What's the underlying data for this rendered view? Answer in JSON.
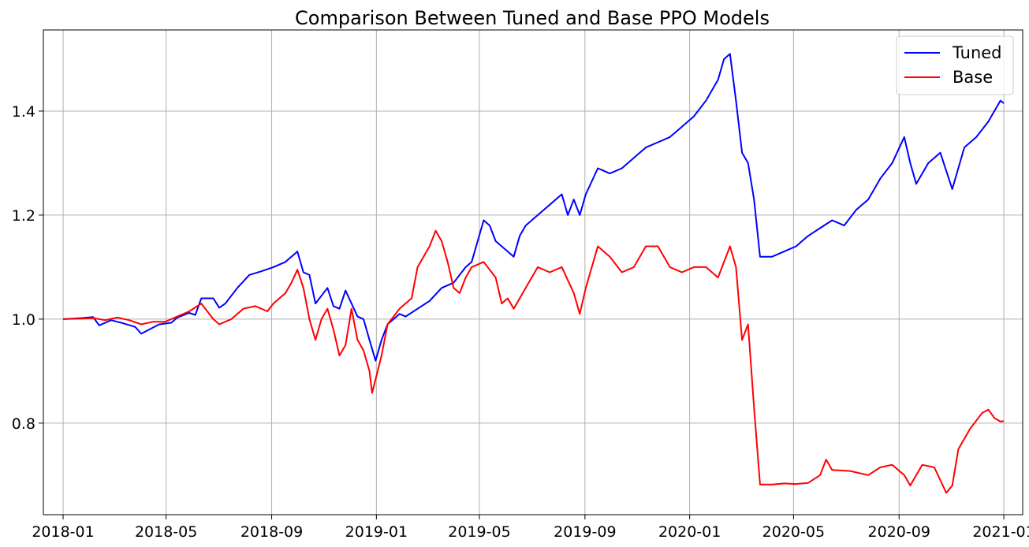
{
  "chart_data": {
    "type": "line",
    "title": "Comparison Between Tuned and Base PPO Models",
    "xlabel": "",
    "ylabel": "",
    "xlim": [
      "2017-12-09",
      "2021-01-23"
    ],
    "ylim": [
      0.624,
      1.556
    ],
    "grid": true,
    "legend_position": "top-right",
    "x_ticks": [
      "2018-01",
      "2018-05",
      "2018-09",
      "2019-01",
      "2019-05",
      "2019-09",
      "2020-01",
      "2020-05",
      "2020-09",
      "2021-01"
    ],
    "y_ticks": [
      "0.8",
      "1.0",
      "1.2",
      "1.4"
    ],
    "series": [
      {
        "name": "Tuned",
        "color": "#0000ff",
        "points": [
          [
            "2018-01-01",
            1.0
          ],
          [
            "2018-01-22",
            1.002
          ],
          [
            "2018-02-05",
            1.004
          ],
          [
            "2018-02-12",
            0.988
          ],
          [
            "2018-02-26",
            0.998
          ],
          [
            "2018-03-12",
            0.992
          ],
          [
            "2018-03-26",
            0.985
          ],
          [
            "2018-04-02",
            0.972
          ],
          [
            "2018-04-09",
            0.978
          ],
          [
            "2018-04-23",
            0.99
          ],
          [
            "2018-05-07",
            0.993
          ],
          [
            "2018-05-14",
            1.003
          ],
          [
            "2018-05-28",
            1.012
          ],
          [
            "2018-06-04",
            1.008
          ],
          [
            "2018-06-11",
            1.04
          ],
          [
            "2018-06-25",
            1.04
          ],
          [
            "2018-07-02",
            1.022
          ],
          [
            "2018-07-09",
            1.03
          ],
          [
            "2018-07-23",
            1.06
          ],
          [
            "2018-08-06",
            1.085
          ],
          [
            "2018-08-20",
            1.092
          ],
          [
            "2018-09-03",
            1.1
          ],
          [
            "2018-09-17",
            1.11
          ],
          [
            "2018-10-01",
            1.13
          ],
          [
            "2018-10-08",
            1.09
          ],
          [
            "2018-10-15",
            1.085
          ],
          [
            "2018-10-22",
            1.03
          ],
          [
            "2018-10-29",
            1.045
          ],
          [
            "2018-11-05",
            1.06
          ],
          [
            "2018-11-12",
            1.025
          ],
          [
            "2018-11-19",
            1.02
          ],
          [
            "2018-11-26",
            1.055
          ],
          [
            "2018-12-03",
            1.03
          ],
          [
            "2018-12-10",
            1.005
          ],
          [
            "2018-12-17",
            1.0
          ],
          [
            "2018-12-24",
            0.96
          ],
          [
            "2018-12-31",
            0.92
          ],
          [
            "2019-01-07",
            0.96
          ],
          [
            "2019-01-14",
            0.99
          ],
          [
            "2019-01-21",
            1.0
          ],
          [
            "2019-01-28",
            1.01
          ],
          [
            "2019-02-04",
            1.005
          ],
          [
            "2019-02-18",
            1.02
          ],
          [
            "2019-03-04",
            1.035
          ],
          [
            "2019-03-18",
            1.06
          ],
          [
            "2019-04-01",
            1.07
          ],
          [
            "2019-04-15",
            1.1
          ],
          [
            "2019-04-22",
            1.11
          ],
          [
            "2019-04-29",
            1.15
          ],
          [
            "2019-05-06",
            1.19
          ],
          [
            "2019-05-13",
            1.18
          ],
          [
            "2019-05-20",
            1.15
          ],
          [
            "2019-06-03",
            1.13
          ],
          [
            "2019-06-10",
            1.12
          ],
          [
            "2019-06-17",
            1.16
          ],
          [
            "2019-06-24",
            1.18
          ],
          [
            "2019-07-08",
            1.2
          ],
          [
            "2019-07-22",
            1.22
          ],
          [
            "2019-08-05",
            1.24
          ],
          [
            "2019-08-12",
            1.2
          ],
          [
            "2019-08-19",
            1.23
          ],
          [
            "2019-08-26",
            1.2
          ],
          [
            "2019-09-02",
            1.24
          ],
          [
            "2019-09-16",
            1.29
          ],
          [
            "2019-09-30",
            1.28
          ],
          [
            "2019-10-14",
            1.29
          ],
          [
            "2019-10-28",
            1.31
          ],
          [
            "2019-11-11",
            1.33
          ],
          [
            "2019-11-25",
            1.34
          ],
          [
            "2019-12-09",
            1.35
          ],
          [
            "2019-12-23",
            1.37
          ],
          [
            "2020-01-06",
            1.39
          ],
          [
            "2020-01-20",
            1.42
          ],
          [
            "2020-02-03",
            1.46
          ],
          [
            "2020-02-10",
            1.5
          ],
          [
            "2020-02-17",
            1.51
          ],
          [
            "2020-02-24",
            1.42
          ],
          [
            "2020-03-02",
            1.32
          ],
          [
            "2020-03-09",
            1.3
          ],
          [
            "2020-03-16",
            1.23
          ],
          [
            "2020-03-23",
            1.12
          ],
          [
            "2020-04-06",
            1.12
          ],
          [
            "2020-04-20",
            1.13
          ],
          [
            "2020-05-04",
            1.14
          ],
          [
            "2020-05-18",
            1.16
          ],
          [
            "2020-06-01",
            1.175
          ],
          [
            "2020-06-15",
            1.19
          ],
          [
            "2020-06-29",
            1.18
          ],
          [
            "2020-07-13",
            1.21
          ],
          [
            "2020-07-27",
            1.23
          ],
          [
            "2020-08-10",
            1.27
          ],
          [
            "2020-08-24",
            1.3
          ],
          [
            "2020-09-07",
            1.35
          ],
          [
            "2020-09-14",
            1.3
          ],
          [
            "2020-09-21",
            1.26
          ],
          [
            "2020-10-05",
            1.3
          ],
          [
            "2020-10-19",
            1.32
          ],
          [
            "2020-11-02",
            1.25
          ],
          [
            "2020-11-16",
            1.33
          ],
          [
            "2020-11-30",
            1.35
          ],
          [
            "2020-12-14",
            1.38
          ],
          [
            "2020-12-28",
            1.42
          ],
          [
            "2021-01-01",
            1.415
          ]
        ]
      },
      {
        "name": "Base",
        "color": "#ff0000",
        "points": [
          [
            "2018-01-01",
            1.0
          ],
          [
            "2018-01-22",
            1.001
          ],
          [
            "2018-02-05",
            1.002
          ],
          [
            "2018-02-19",
            0.998
          ],
          [
            "2018-03-05",
            1.003
          ],
          [
            "2018-03-19",
            0.998
          ],
          [
            "2018-04-02",
            0.99
          ],
          [
            "2018-04-16",
            0.995
          ],
          [
            "2018-04-30",
            0.995
          ],
          [
            "2018-05-14",
            1.005
          ],
          [
            "2018-05-28",
            1.015
          ],
          [
            "2018-06-11",
            1.03
          ],
          [
            "2018-06-25",
            1.0
          ],
          [
            "2018-07-02",
            0.99
          ],
          [
            "2018-07-16",
            1.0
          ],
          [
            "2018-07-30",
            1.02
          ],
          [
            "2018-08-13",
            1.025
          ],
          [
            "2018-08-27",
            1.015
          ],
          [
            "2018-09-03",
            1.03
          ],
          [
            "2018-09-17",
            1.05
          ],
          [
            "2018-09-24",
            1.07
          ],
          [
            "2018-10-01",
            1.095
          ],
          [
            "2018-10-08",
            1.06
          ],
          [
            "2018-10-15",
            1.0
          ],
          [
            "2018-10-22",
            0.96
          ],
          [
            "2018-10-29",
            1.0
          ],
          [
            "2018-11-05",
            1.02
          ],
          [
            "2018-11-12",
            0.98
          ],
          [
            "2018-11-19",
            0.93
          ],
          [
            "2018-11-26",
            0.95
          ],
          [
            "2018-12-03",
            1.02
          ],
          [
            "2018-12-10",
            0.96
          ],
          [
            "2018-12-17",
            0.94
          ],
          [
            "2018-12-24",
            0.9
          ],
          [
            "2018-12-27",
            0.858
          ],
          [
            "2019-01-07",
            0.93
          ],
          [
            "2019-01-14",
            0.99
          ],
          [
            "2019-01-28",
            1.02
          ],
          [
            "2019-02-11",
            1.04
          ],
          [
            "2019-02-18",
            1.1
          ],
          [
            "2019-03-04",
            1.14
          ],
          [
            "2019-03-11",
            1.17
          ],
          [
            "2019-03-18",
            1.15
          ],
          [
            "2019-03-25",
            1.11
          ],
          [
            "2019-04-01",
            1.06
          ],
          [
            "2019-04-08",
            1.05
          ],
          [
            "2019-04-15",
            1.08
          ],
          [
            "2019-04-22",
            1.1
          ],
          [
            "2019-05-06",
            1.11
          ],
          [
            "2019-05-20",
            1.08
          ],
          [
            "2019-05-27",
            1.03
          ],
          [
            "2019-06-03",
            1.04
          ],
          [
            "2019-06-10",
            1.02
          ],
          [
            "2019-06-24",
            1.06
          ],
          [
            "2019-07-08",
            1.1
          ],
          [
            "2019-07-22",
            1.09
          ],
          [
            "2019-08-05",
            1.1
          ],
          [
            "2019-08-19",
            1.05
          ],
          [
            "2019-08-26",
            1.01
          ],
          [
            "2019-09-02",
            1.06
          ],
          [
            "2019-09-16",
            1.14
          ],
          [
            "2019-09-30",
            1.12
          ],
          [
            "2019-10-14",
            1.09
          ],
          [
            "2019-10-28",
            1.1
          ],
          [
            "2019-11-11",
            1.14
          ],
          [
            "2019-11-25",
            1.14
          ],
          [
            "2019-12-09",
            1.1
          ],
          [
            "2019-12-23",
            1.09
          ],
          [
            "2020-01-06",
            1.1
          ],
          [
            "2020-01-20",
            1.1
          ],
          [
            "2020-02-03",
            1.08
          ],
          [
            "2020-02-17",
            1.14
          ],
          [
            "2020-02-24",
            1.1
          ],
          [
            "2020-03-02",
            0.96
          ],
          [
            "2020-03-09",
            0.99
          ],
          [
            "2020-03-16",
            0.83
          ],
          [
            "2020-03-23",
            0.682
          ],
          [
            "2020-04-06",
            0.682
          ],
          [
            "2020-04-20",
            0.684
          ],
          [
            "2020-05-04",
            0.683
          ],
          [
            "2020-05-18",
            0.685
          ],
          [
            "2020-06-01",
            0.7
          ],
          [
            "2020-06-08",
            0.73
          ],
          [
            "2020-06-15",
            0.71
          ],
          [
            "2020-07-06",
            0.708
          ],
          [
            "2020-07-27",
            0.7
          ],
          [
            "2020-08-10",
            0.715
          ],
          [
            "2020-08-24",
            0.72
          ],
          [
            "2020-09-07",
            0.7
          ],
          [
            "2020-09-14",
            0.68
          ],
          [
            "2020-09-28",
            0.72
          ],
          [
            "2020-10-12",
            0.715
          ],
          [
            "2020-10-26",
            0.666
          ],
          [
            "2020-11-02",
            0.68
          ],
          [
            "2020-11-09",
            0.75
          ],
          [
            "2020-11-23",
            0.79
          ],
          [
            "2020-12-07",
            0.82
          ],
          [
            "2020-12-14",
            0.826
          ],
          [
            "2020-12-21",
            0.81
          ],
          [
            "2020-12-28",
            0.803
          ],
          [
            "2021-01-01",
            0.804
          ]
        ]
      }
    ]
  }
}
